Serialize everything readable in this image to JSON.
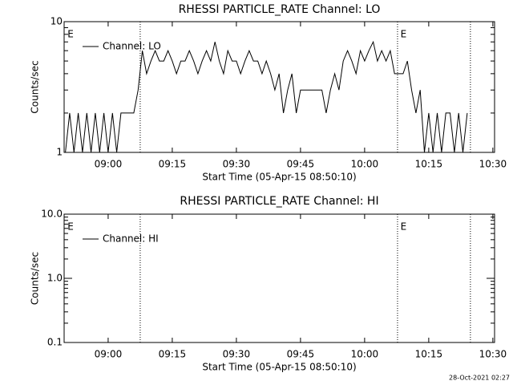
{
  "chart_data": [
    {
      "type": "line",
      "title": "RHESSI PARTICLE_RATE Channel: LO",
      "x_label": "Start Time (05-Apr-15 08:50:10)",
      "y_label": "Counts/sec",
      "log_y": true,
      "legend": "top-left",
      "xlim": [
        529.7,
        630.4
      ],
      "xticks": [
        {
          "value": 540,
          "label": "09:00"
        },
        {
          "value": 555,
          "label": "09:15"
        },
        {
          "value": 570,
          "label": "09:30"
        },
        {
          "value": 585,
          "label": "09:45"
        },
        {
          "value": 600,
          "label": "10:00"
        },
        {
          "value": 615,
          "label": "10:15"
        },
        {
          "value": 630,
          "label": "10:30"
        }
      ],
      "ylim": [
        1,
        10
      ],
      "yticks": [
        1,
        10
      ],
      "vlines": [
        547.5,
        607.7,
        624.75
      ],
      "flags": [
        {
          "x": 530.5,
          "label": "E"
        },
        {
          "x": 608.4,
          "label": "E"
        }
      ],
      "x": [
        530,
        531,
        532,
        533,
        534,
        535,
        536,
        537,
        538,
        539,
        540,
        541,
        542,
        543,
        544,
        545,
        546,
        547,
        548,
        549,
        550,
        551,
        552,
        553,
        554,
        555,
        556,
        557,
        558,
        559,
        560,
        561,
        562,
        563,
        564,
        565,
        566,
        567,
        568,
        569,
        570,
        571,
        572,
        573,
        574,
        575,
        576,
        577,
        578,
        579,
        580,
        581,
        582,
        583,
        584,
        585,
        586,
        587,
        588,
        589,
        590,
        591,
        592,
        593,
        594,
        595,
        596,
        597,
        598,
        599,
        600,
        601,
        602,
        603,
        604,
        605,
        606,
        607,
        608,
        609,
        610,
        611,
        612,
        613,
        614,
        615,
        616,
        617,
        618,
        619,
        620,
        621,
        622,
        623,
        624
      ],
      "series": [
        {
          "name": "Channel: LO",
          "color": "#000000",
          "values": [
            1,
            2,
            1,
            2,
            1,
            2,
            1,
            2,
            1,
            2,
            1,
            2,
            1,
            2,
            2,
            2,
            2,
            3,
            6,
            4,
            5,
            6,
            5,
            5,
            6,
            5,
            4,
            5,
            5,
            6,
            5,
            4,
            5,
            6,
            5,
            7,
            5,
            4,
            6,
            5,
            5,
            4,
            5,
            6,
            5,
            5,
            4,
            5,
            4,
            3,
            4,
            2,
            3,
            4,
            2,
            3,
            3,
            3,
            3,
            3,
            3,
            2,
            3,
            4,
            3,
            5,
            6,
            5,
            4,
            6,
            5,
            6,
            7,
            5,
            6,
            5,
            6,
            4,
            4,
            4,
            5,
            3,
            2,
            3,
            1,
            2,
            1,
            2,
            1,
            2,
            2,
            1,
            2,
            1,
            2
          ]
        }
      ]
    },
    {
      "type": "line",
      "title": "RHESSI PARTICLE_RATE Channel: HI",
      "x_label": "Start Time (05-Apr-15 08:50:10)",
      "y_label": "Counts/sec",
      "log_y": true,
      "legend": "top-left",
      "xlim": [
        529.7,
        630.4
      ],
      "xticks": [
        {
          "value": 540,
          "label": "09:00"
        },
        {
          "value": 555,
          "label": "09:15"
        },
        {
          "value": 570,
          "label": "09:30"
        },
        {
          "value": 585,
          "label": "09:45"
        },
        {
          "value": 600,
          "label": "10:00"
        },
        {
          "value": 615,
          "label": "10:15"
        },
        {
          "value": 630,
          "label": "10:30"
        }
      ],
      "ylim": [
        0.1,
        10
      ],
      "yticks": [
        0.1,
        {
          "value": 1,
          "label": "1.0"
        },
        {
          "value": 10,
          "label": "10.0"
        }
      ],
      "vlines": [
        547.5,
        607.7,
        624.75
      ],
      "flags": [
        {
          "x": 530.5,
          "label": "E"
        },
        {
          "x": 608.4,
          "label": "E"
        }
      ],
      "x": [],
      "series": [
        {
          "name": "Channel: HI",
          "color": "#000000",
          "values": []
        }
      ]
    }
  ],
  "footer": "28-Oct-2021 02:27"
}
